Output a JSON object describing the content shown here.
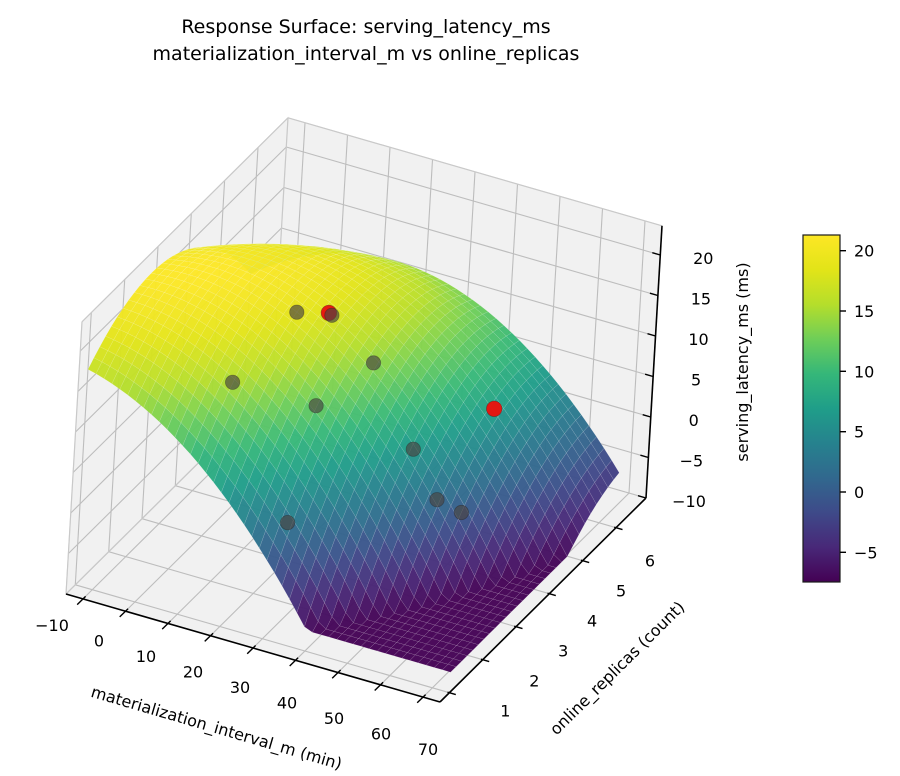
{
  "chart_data": {
    "type": "surface3d",
    "title_line1": "Response Surface: serving_latency_ms",
    "title_line2": "materialization_interval_m vs online_replicas",
    "xlabel": "materialization_interval_m (min)",
    "ylabel": "online_replicas (count)",
    "zlabel": "serving_latency_ms (ms)",
    "x_ticks": [
      -10,
      0,
      10,
      20,
      30,
      40,
      50,
      60,
      70
    ],
    "y_ticks": [
      1,
      2,
      3,
      4,
      5,
      6
    ],
    "z_ticks": [
      -10,
      -5,
      0,
      5,
      10,
      15,
      20
    ],
    "colorbar_ticks": [
      20,
      15,
      10,
      5,
      0,
      -5
    ],
    "color_range": [
      -7.46,
      21.3
    ],
    "axis_ranges": {
      "x": [
        -14,
        74
      ],
      "y": [
        0.72,
        6.9
      ],
      "z": [
        -10,
        23.6
      ]
    },
    "surface_model": {
      "z_peak": 21.3,
      "x0": -5,
      "cx": 0.0039,
      "ky": 1.3,
      "y0_base": 3.2,
      "y0_slope": 0.04,
      "clamp_min": -7.46,
      "x_domain": [
        -14,
        74
      ],
      "y_domain": [
        1,
        6
      ],
      "nx": 46,
      "ny": 30
    },
    "colormap": "viridis",
    "viridis_stops": [
      "#440154",
      "#482878",
      "#3e4a89",
      "#31688e",
      "#26828e",
      "#1f9e89",
      "#35b779",
      "#6ece58",
      "#b5de2b",
      "#e2e418",
      "#fde725"
    ],
    "observed_points": [
      {
        "x": 19,
        "y": 3.0,
        "z": 20.5
      },
      {
        "x": 25,
        "y": 3.3,
        "z": 19.8
      },
      {
        "x": 36,
        "y": 3.2,
        "z": 16.0
      },
      {
        "x": 16,
        "y": 1.5,
        "z": 17.5
      },
      {
        "x": 32,
        "y": 2.0,
        "z": 15.0
      },
      {
        "x": 50,
        "y": 2.7,
        "z": 9.5
      },
      {
        "x": 58,
        "y": 2.45,
        "z": 5.5
      },
      {
        "x": 62,
        "y": 2.7,
        "z": 3.5
      },
      {
        "x": 35,
        "y": 0.9,
        "z": 5.5
      }
    ],
    "predicted_points": [
      {
        "x": 25,
        "y": 3.2,
        "z": 20.5,
        "layer": "back"
      },
      {
        "x": 58,
        "y": 4.1,
        "z": 10.0,
        "layer": "front"
      }
    ],
    "point_colors": {
      "observed": "#4a4642",
      "predicted": "#e8130e"
    },
    "grid_on": true,
    "legend": "none",
    "colorbar_position": "right"
  }
}
